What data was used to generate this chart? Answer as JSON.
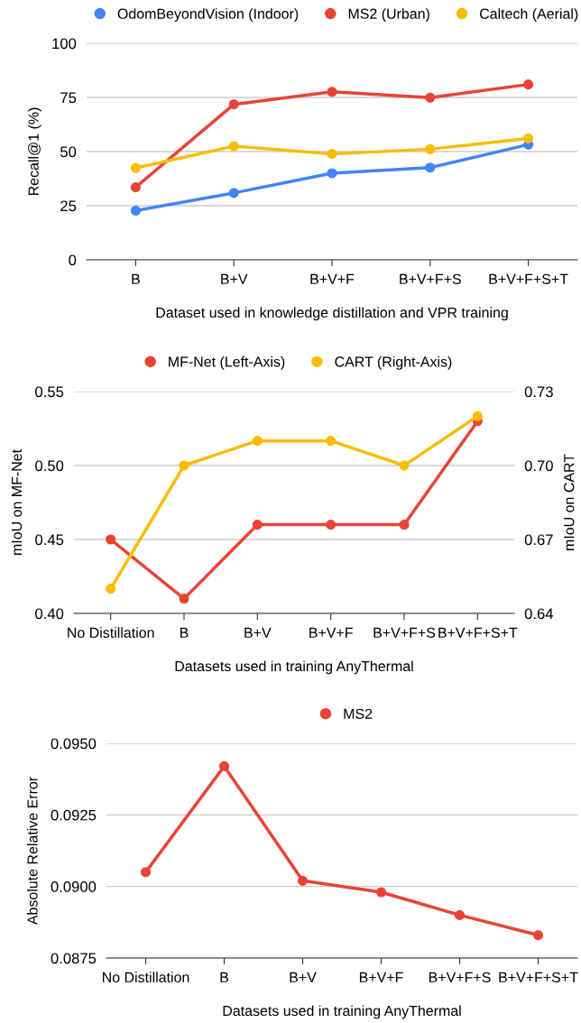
{
  "chart_data": [
    {
      "type": "line",
      "xlabel": "Dataset used in knowledge distillation and VPR training",
      "ylabel": "Recall@1 (%)",
      "categories": [
        "B",
        "B+V",
        "B+V+F",
        "B+V+F+S",
        "B+V+F+S+T"
      ],
      "series": [
        {
          "name": "OdomBeyondVision (Indoor)",
          "color": "#4285f4",
          "values": [
            22.7,
            30.9,
            40.0,
            42.6,
            53.2
          ]
        },
        {
          "name": "MS2 (Urban)",
          "color": "#ea4335",
          "values": [
            33.5,
            71.8,
            77.6,
            74.9,
            81.0
          ]
        },
        {
          "name": "Caltech (Aerial)",
          "color": "#fbbc04",
          "values": [
            42.4,
            52.5,
            48.9,
            51.1,
            56.1
          ]
        }
      ],
      "ylim": [
        0,
        100
      ],
      "yticks": [
        0,
        25,
        50,
        75,
        100
      ],
      "grid": "y",
      "legend": "top",
      "marker": "circle",
      "line_style": "solid"
    },
    {
      "type": "line",
      "xlabel": "Datasets used in training AnyThermal",
      "ylabel": "mIoU on MF-Net",
      "y2label": "mIoU on CART",
      "categories": [
        "No Distillation",
        "B",
        "B+V",
        "B+V+F",
        "B+V+F+S",
        "B+V+F+S+T"
      ],
      "series": [
        {
          "name": "MF-Net (Left-Axis)",
          "color": "#ea4335",
          "values": [
            0.45,
            0.41,
            0.46,
            0.46,
            0.46,
            0.53
          ]
        },
        {
          "name": "CART (Right-Axis)",
          "color": "#fbbc04",
          "axis": "y2",
          "values": [
            0.65,
            0.7,
            0.71,
            0.71,
            0.7,
            0.72
          ]
        }
      ],
      "ylim": [
        0.4,
        0.55
      ],
      "yticks": [
        {
          "value": 0.4,
          "label": "0.40"
        },
        {
          "value": 0.45,
          "label": "0.45"
        },
        {
          "value": 0.5,
          "label": "0.50"
        },
        {
          "value": 0.55,
          "label": "0.55"
        }
      ],
      "y2lim": [
        0.64,
        0.73
      ],
      "y2ticks": [
        0.64,
        0.67,
        {
          "value": 0.7,
          "label": "0.70"
        },
        0.73
      ],
      "grid": "y",
      "legend": "top",
      "marker": "circle",
      "line_style": "solid"
    },
    {
      "type": "line",
      "xlabel": "Datasets used in training AnyThermal",
      "ylabel": "Absolute Relative Error",
      "categories": [
        "No Distillation",
        "B",
        "B+V",
        "B+V+F",
        "B+V+F+S",
        "B+V+F+S+T"
      ],
      "series": [
        {
          "name": "MS2",
          "color": "#ea4335",
          "values": [
            0.0905,
            0.0942,
            0.0902,
            0.0898,
            0.089,
            0.0883
          ]
        }
      ],
      "ylim": [
        0.0875,
        0.095
      ],
      "yticks": [
        0.0875,
        {
          "value": 0.09,
          "label": "0.0900"
        },
        0.0925,
        {
          "value": 0.095,
          "label": "0.0950"
        }
      ],
      "grid": "y",
      "legend": "top",
      "marker": "circle",
      "line_style": "solid"
    }
  ]
}
